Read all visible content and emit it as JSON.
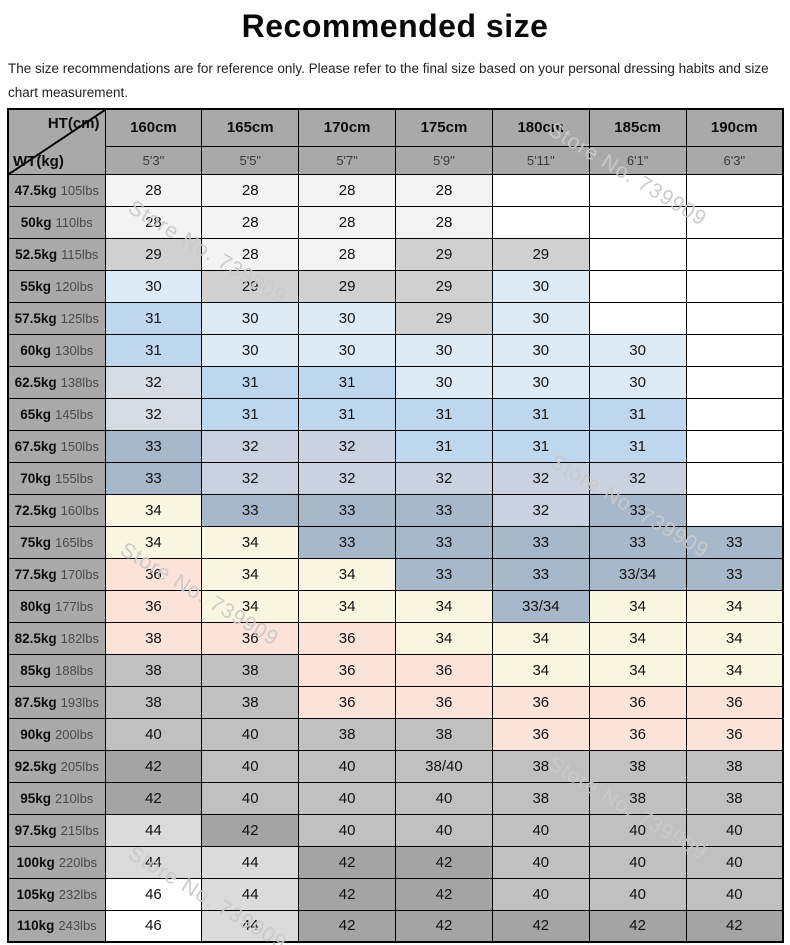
{
  "title": "Recommended size",
  "subtitle": "The size recommendations are for reference only. Please refer to the final size based on your personal dressing habits and size chart measurement.",
  "watermark": {
    "text": "Store No. 739909"
  },
  "colors": {
    "g1": "#F3F3F3",
    "g2": "#D0D0D0",
    "b1": "#DDEBF7",
    "b2": "#BDD7EE",
    "s1": "#D6DCE4",
    "s2": "#C8D2E0",
    "s3": "#A7B8CB",
    "c": "#FAF5E0",
    "p": "#FBE3D9",
    "m": "#C0C0C0",
    "d": "#A4A4A4",
    "l": "#DBDBDB",
    "w": "#FFFFFF"
  },
  "table": {
    "corner": {
      "top_label": "HT(cm)",
      "bottom_label": "WT(kg)"
    },
    "height_headers_cm": [
      "160cm",
      "165cm",
      "170cm",
      "175cm",
      "180cm",
      "185cm",
      "190cm"
    ],
    "height_headers_ft": [
      "5'3\"",
      "5'5\"",
      "5'7\"",
      "5'9\"",
      "5'11\"",
      "6'1\"",
      "6'3\""
    ],
    "rows": [
      {
        "kg": "47.5kg",
        "lbs": "105lbs",
        "cells": [
          {
            "v": "28",
            "c": "g1"
          },
          {
            "v": "28",
            "c": "g1"
          },
          {
            "v": "28",
            "c": "g1"
          },
          {
            "v": "28",
            "c": "g1"
          },
          {
            "v": "",
            "c": "w"
          },
          {
            "v": "",
            "c": "w"
          },
          {
            "v": "",
            "c": "w"
          }
        ]
      },
      {
        "kg": "50kg",
        "lbs": "110lbs",
        "cells": [
          {
            "v": "28",
            "c": "g1"
          },
          {
            "v": "28",
            "c": "g1"
          },
          {
            "v": "28",
            "c": "g1"
          },
          {
            "v": "28",
            "c": "g1"
          },
          {
            "v": "",
            "c": "w"
          },
          {
            "v": "",
            "c": "w"
          },
          {
            "v": "",
            "c": "w"
          }
        ]
      },
      {
        "kg": "52.5kg",
        "lbs": "115lbs",
        "cells": [
          {
            "v": "29",
            "c": "g2"
          },
          {
            "v": "28",
            "c": "g1"
          },
          {
            "v": "28",
            "c": "g1"
          },
          {
            "v": "29",
            "c": "g2"
          },
          {
            "v": "29",
            "c": "g2"
          },
          {
            "v": "",
            "c": "w"
          },
          {
            "v": "",
            "c": "w"
          }
        ]
      },
      {
        "kg": "55kg",
        "lbs": "120lbs",
        "cells": [
          {
            "v": "30",
            "c": "b1"
          },
          {
            "v": "29",
            "c": "g2"
          },
          {
            "v": "29",
            "c": "g2"
          },
          {
            "v": "29",
            "c": "g2"
          },
          {
            "v": "30",
            "c": "b1"
          },
          {
            "v": "",
            "c": "w"
          },
          {
            "v": "",
            "c": "w"
          }
        ]
      },
      {
        "kg": "57.5kg",
        "lbs": "125lbs",
        "cells": [
          {
            "v": "31",
            "c": "b2"
          },
          {
            "v": "30",
            "c": "b1"
          },
          {
            "v": "30",
            "c": "b1"
          },
          {
            "v": "29",
            "c": "g2"
          },
          {
            "v": "30",
            "c": "b1"
          },
          {
            "v": "",
            "c": "w"
          },
          {
            "v": "",
            "c": "w"
          }
        ]
      },
      {
        "kg": "60kg",
        "lbs": "130lbs",
        "cells": [
          {
            "v": "31",
            "c": "b2"
          },
          {
            "v": "30",
            "c": "b1"
          },
          {
            "v": "30",
            "c": "b1"
          },
          {
            "v": "30",
            "c": "b1"
          },
          {
            "v": "30",
            "c": "b1"
          },
          {
            "v": "30",
            "c": "b1"
          },
          {
            "v": "",
            "c": "w"
          }
        ]
      },
      {
        "kg": "62.5kg",
        "lbs": "138lbs",
        "cells": [
          {
            "v": "32",
            "c": "s1"
          },
          {
            "v": "31",
            "c": "b2"
          },
          {
            "v": "31",
            "c": "b2"
          },
          {
            "v": "30",
            "c": "b1"
          },
          {
            "v": "30",
            "c": "b1"
          },
          {
            "v": "30",
            "c": "b1"
          },
          {
            "v": "",
            "c": "w"
          }
        ]
      },
      {
        "kg": "65kg",
        "lbs": "145lbs",
        "cells": [
          {
            "v": "32",
            "c": "s1"
          },
          {
            "v": "31",
            "c": "b2"
          },
          {
            "v": "31",
            "c": "b2"
          },
          {
            "v": "31",
            "c": "b2"
          },
          {
            "v": "31",
            "c": "b2"
          },
          {
            "v": "31",
            "c": "b2"
          },
          {
            "v": "",
            "c": "w"
          }
        ]
      },
      {
        "kg": "67.5kg",
        "lbs": "150lbs",
        "cells": [
          {
            "v": "33",
            "c": "s3"
          },
          {
            "v": "32",
            "c": "s2"
          },
          {
            "v": "32",
            "c": "s2"
          },
          {
            "v": "31",
            "c": "b2"
          },
          {
            "v": "31",
            "c": "b2"
          },
          {
            "v": "31",
            "c": "b2"
          },
          {
            "v": "",
            "c": "w"
          }
        ]
      },
      {
        "kg": "70kg",
        "lbs": "155lbs",
        "cells": [
          {
            "v": "33",
            "c": "s3"
          },
          {
            "v": "32",
            "c": "s2"
          },
          {
            "v": "32",
            "c": "s2"
          },
          {
            "v": "32",
            "c": "s2"
          },
          {
            "v": "32",
            "c": "s2"
          },
          {
            "v": "32",
            "c": "s2"
          },
          {
            "v": "",
            "c": "w"
          }
        ]
      },
      {
        "kg": "72.5kg",
        "lbs": "160lbs",
        "cells": [
          {
            "v": "34",
            "c": "c"
          },
          {
            "v": "33",
            "c": "s3"
          },
          {
            "v": "33",
            "c": "s3"
          },
          {
            "v": "33",
            "c": "s3"
          },
          {
            "v": "32",
            "c": "s2"
          },
          {
            "v": "33",
            "c": "s3"
          },
          {
            "v": "",
            "c": "w"
          }
        ]
      },
      {
        "kg": "75kg",
        "lbs": "165lbs",
        "cells": [
          {
            "v": "34",
            "c": "c"
          },
          {
            "v": "34",
            "c": "c"
          },
          {
            "v": "33",
            "c": "s3"
          },
          {
            "v": "33",
            "c": "s3"
          },
          {
            "v": "33",
            "c": "s3"
          },
          {
            "v": "33",
            "c": "s3"
          },
          {
            "v": "33",
            "c": "s3"
          }
        ]
      },
      {
        "kg": "77.5kg",
        "lbs": "170lbs",
        "cells": [
          {
            "v": "36",
            "c": "p"
          },
          {
            "v": "34",
            "c": "c"
          },
          {
            "v": "34",
            "c": "c"
          },
          {
            "v": "33",
            "c": "s3"
          },
          {
            "v": "33",
            "c": "s3"
          },
          {
            "v": "33/34",
            "c": "s3"
          },
          {
            "v": "33",
            "c": "s3"
          }
        ]
      },
      {
        "kg": "80kg",
        "lbs": "177lbs",
        "cells": [
          {
            "v": "36",
            "c": "p"
          },
          {
            "v": "34",
            "c": "c"
          },
          {
            "v": "34",
            "c": "c"
          },
          {
            "v": "34",
            "c": "c"
          },
          {
            "v": "33/34",
            "c": "s3"
          },
          {
            "v": "34",
            "c": "c"
          },
          {
            "v": "34",
            "c": "c"
          }
        ]
      },
      {
        "kg": "82.5kg",
        "lbs": "182lbs",
        "cells": [
          {
            "v": "38",
            "c": "p"
          },
          {
            "v": "36",
            "c": "p"
          },
          {
            "v": "36",
            "c": "p"
          },
          {
            "v": "34",
            "c": "c"
          },
          {
            "v": "34",
            "c": "c"
          },
          {
            "v": "34",
            "c": "c"
          },
          {
            "v": "34",
            "c": "c"
          }
        ]
      },
      {
        "kg": "85kg",
        "lbs": "188lbs",
        "cells": [
          {
            "v": "38",
            "c": "m"
          },
          {
            "v": "38",
            "c": "m"
          },
          {
            "v": "36",
            "c": "p"
          },
          {
            "v": "36",
            "c": "p"
          },
          {
            "v": "34",
            "c": "c"
          },
          {
            "v": "34",
            "c": "c"
          },
          {
            "v": "34",
            "c": "c"
          }
        ]
      },
      {
        "kg": "87.5kg",
        "lbs": "193lbs",
        "cells": [
          {
            "v": "38",
            "c": "m"
          },
          {
            "v": "38",
            "c": "m"
          },
          {
            "v": "36",
            "c": "p"
          },
          {
            "v": "36",
            "c": "p"
          },
          {
            "v": "36",
            "c": "p"
          },
          {
            "v": "36",
            "c": "p"
          },
          {
            "v": "36",
            "c": "p"
          }
        ]
      },
      {
        "kg": "90kg",
        "lbs": "200lbs",
        "cells": [
          {
            "v": "40",
            "c": "m"
          },
          {
            "v": "40",
            "c": "m"
          },
          {
            "v": "38",
            "c": "m"
          },
          {
            "v": "38",
            "c": "m"
          },
          {
            "v": "36",
            "c": "p"
          },
          {
            "v": "36",
            "c": "p"
          },
          {
            "v": "36",
            "c": "p"
          }
        ]
      },
      {
        "kg": "92.5kg",
        "lbs": "205lbs",
        "cells": [
          {
            "v": "42",
            "c": "d"
          },
          {
            "v": "40",
            "c": "m"
          },
          {
            "v": "40",
            "c": "m"
          },
          {
            "v": "38/40",
            "c": "m"
          },
          {
            "v": "38",
            "c": "m"
          },
          {
            "v": "38",
            "c": "m"
          },
          {
            "v": "38",
            "c": "m"
          }
        ]
      },
      {
        "kg": "95kg",
        "lbs": "210lbs",
        "cells": [
          {
            "v": "42",
            "c": "d"
          },
          {
            "v": "40",
            "c": "m"
          },
          {
            "v": "40",
            "c": "m"
          },
          {
            "v": "40",
            "c": "m"
          },
          {
            "v": "38",
            "c": "m"
          },
          {
            "v": "38",
            "c": "m"
          },
          {
            "v": "38",
            "c": "m"
          }
        ]
      },
      {
        "kg": "97.5kg",
        "lbs": "215lbs",
        "cells": [
          {
            "v": "44",
            "c": "l"
          },
          {
            "v": "42",
            "c": "d"
          },
          {
            "v": "40",
            "c": "m"
          },
          {
            "v": "40",
            "c": "m"
          },
          {
            "v": "40",
            "c": "m"
          },
          {
            "v": "40",
            "c": "m"
          },
          {
            "v": "40",
            "c": "m"
          }
        ]
      },
      {
        "kg": "100kg",
        "lbs": "220lbs",
        "cells": [
          {
            "v": "44",
            "c": "l"
          },
          {
            "v": "44",
            "c": "l"
          },
          {
            "v": "42",
            "c": "d"
          },
          {
            "v": "42",
            "c": "d"
          },
          {
            "v": "40",
            "c": "m"
          },
          {
            "v": "40",
            "c": "m"
          },
          {
            "v": "40",
            "c": "m"
          }
        ]
      },
      {
        "kg": "105kg",
        "lbs": "232lbs",
        "cells": [
          {
            "v": "46",
            "c": "w"
          },
          {
            "v": "44",
            "c": "l"
          },
          {
            "v": "42",
            "c": "d"
          },
          {
            "v": "42",
            "c": "d"
          },
          {
            "v": "40",
            "c": "m"
          },
          {
            "v": "40",
            "c": "m"
          },
          {
            "v": "40",
            "c": "m"
          }
        ]
      },
      {
        "kg": "110kg",
        "lbs": "243lbs",
        "cells": [
          {
            "v": "46",
            "c": "w"
          },
          {
            "v": "44",
            "c": "l"
          },
          {
            "v": "42",
            "c": "d"
          },
          {
            "v": "42",
            "c": "d"
          },
          {
            "v": "42",
            "c": "d"
          },
          {
            "v": "42",
            "c": "d"
          },
          {
            "v": "42",
            "c": "d"
          }
        ]
      }
    ]
  }
}
